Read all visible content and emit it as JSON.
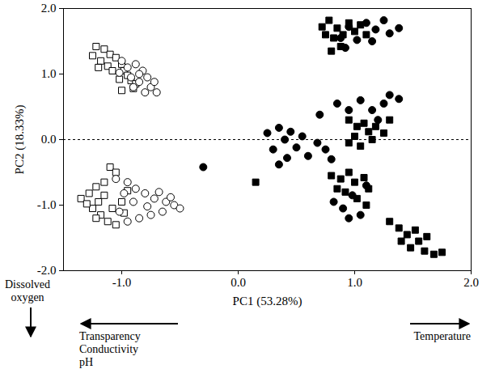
{
  "chart_data": {
    "type": "scatter",
    "x_label": "PC1 (53.28%)",
    "y_label": "PC2 (18.33%)",
    "xlim": [
      -1.5,
      2.0
    ],
    "ylim": [
      -2.0,
      2.0
    ],
    "xticks": [
      {
        "value": -1,
        "label": "-1.0"
      },
      {
        "value": 0,
        "label": "0.0"
      },
      {
        "value": 1,
        "label": "1.0"
      },
      {
        "value": 2,
        "label": "2.0"
      }
    ],
    "yticks": [
      {
        "value": -2,
        "label": "-2.0"
      },
      {
        "value": -1,
        "label": "-1.0"
      },
      {
        "value": 0,
        "label": "0.0"
      },
      {
        "value": 1,
        "label": "1.0"
      },
      {
        "value": 2,
        "label": "2.0"
      }
    ],
    "grid": false,
    "hline": {
      "y": 0,
      "line_style": "dashed"
    },
    "annotations": [
      {
        "lines": [
          "Dissolved",
          "oxygen"
        ],
        "arrow": "down"
      },
      {
        "lines": [
          "Transparency",
          "Conductivity",
          "pH"
        ],
        "arrow": "left"
      },
      {
        "lines": [
          "Temperature"
        ],
        "arrow": "right"
      }
    ],
    "series": [
      {
        "marker": "square-open",
        "color": "#000000",
        "points": [
          [
            -1.22,
            1.42
          ],
          [
            -1.15,
            1.38
          ],
          [
            -1.1,
            1.3
          ],
          [
            -1.18,
            1.2
          ],
          [
            -1.12,
            1.12
          ],
          [
            -1.05,
            1.25
          ],
          [
            -1.0,
            1.15
          ],
          [
            -0.98,
            1.05
          ],
          [
            -1.08,
            1.05
          ],
          [
            -0.95,
            0.98
          ],
          [
            -0.92,
            0.9
          ],
          [
            -0.88,
            0.85
          ],
          [
            -1.02,
            0.92
          ],
          [
            -0.9,
            0.78
          ],
          [
            -1.2,
            1.1
          ],
          [
            -1.25,
            1.28
          ],
          [
            -1.0,
            0.75
          ],
          [
            -1.35,
            -0.9
          ],
          [
            -1.28,
            -0.82
          ],
          [
            -1.22,
            -0.72
          ],
          [
            -1.15,
            -0.65
          ],
          [
            -1.1,
            -0.42
          ],
          [
            -1.2,
            -0.95
          ],
          [
            -1.25,
            -1.05
          ],
          [
            -1.18,
            -1.15
          ],
          [
            -1.12,
            -1.25
          ],
          [
            -1.05,
            -1.3
          ],
          [
            -1.08,
            -1.05
          ],
          [
            -1.0,
            -0.95
          ],
          [
            -0.98,
            -1.12
          ],
          [
            -1.15,
            -0.85
          ],
          [
            -1.3,
            -0.98
          ],
          [
            -1.22,
            -1.2
          ],
          [
            -1.05,
            -0.5
          ],
          [
            -0.95,
            -0.78
          ]
        ]
      },
      {
        "marker": "circle-open",
        "color": "#000000",
        "points": [
          [
            -1.0,
            1.2
          ],
          [
            -0.95,
            1.1
          ],
          [
            -0.88,
            1.15
          ],
          [
            -0.82,
            1.05
          ],
          [
            -0.78,
            0.95
          ],
          [
            -0.85,
            0.88
          ],
          [
            -0.92,
            0.95
          ],
          [
            -0.75,
            0.8
          ],
          [
            -0.7,
            0.72
          ],
          [
            -0.8,
            0.72
          ],
          [
            -0.9,
            0.8
          ],
          [
            -1.02,
            1.02
          ],
          [
            -0.72,
            0.88
          ],
          [
            -0.85,
            1.0
          ],
          [
            -1.05,
            -0.6
          ],
          [
            -0.95,
            -0.65
          ],
          [
            -0.88,
            -0.75
          ],
          [
            -0.8,
            -0.82
          ],
          [
            -0.72,
            -0.9
          ],
          [
            -0.62,
            -0.95
          ],
          [
            -0.55,
            -1.0
          ],
          [
            -0.5,
            -1.05
          ],
          [
            -0.65,
            -1.1
          ],
          [
            -0.75,
            -1.15
          ],
          [
            -0.85,
            -1.2
          ],
          [
            -0.95,
            -1.25
          ],
          [
            -1.02,
            -1.1
          ],
          [
            -0.9,
            -0.95
          ],
          [
            -0.78,
            -1.02
          ],
          [
            -0.68,
            -0.8
          ],
          [
            -0.58,
            -0.88
          ],
          [
            -0.98,
            -0.82
          ]
        ]
      },
      {
        "marker": "square",
        "color": "#000000",
        "points": [
          [
            0.72,
            1.72
          ],
          [
            0.78,
            1.82
          ],
          [
            0.85,
            1.7
          ],
          [
            0.9,
            1.6
          ],
          [
            0.95,
            1.78
          ],
          [
            1.0,
            1.65
          ],
          [
            1.05,
            1.75
          ],
          [
            0.82,
            1.55
          ],
          [
            0.88,
            1.42
          ],
          [
            0.8,
            1.35
          ],
          [
            1.1,
            1.6
          ],
          [
            0.75,
            1.6
          ],
          [
            0.95,
            0.3
          ],
          [
            1.02,
            0.2
          ],
          [
            1.08,
            0.25
          ],
          [
            1.12,
            0.12
          ],
          [
            1.18,
            0.2
          ],
          [
            1.25,
            0.1
          ],
          [
            1.0,
            0.05
          ],
          [
            0.95,
            -0.05
          ],
          [
            1.15,
            0.0
          ],
          [
            1.05,
            -0.1
          ],
          [
            1.3,
            0.3
          ],
          [
            0.8,
            -0.55
          ],
          [
            0.88,
            -0.6
          ],
          [
            0.95,
            -0.5
          ],
          [
            1.0,
            -0.65
          ],
          [
            1.08,
            -0.58
          ],
          [
            1.12,
            -0.75
          ],
          [
            0.92,
            -0.8
          ],
          [
            1.02,
            -0.9
          ],
          [
            1.1,
            -1.0
          ],
          [
            0.85,
            -0.75
          ],
          [
            1.3,
            -1.25
          ],
          [
            1.38,
            -1.35
          ],
          [
            1.45,
            -1.45
          ],
          [
            1.52,
            -1.38
          ],
          [
            1.55,
            -1.55
          ],
          [
            1.62,
            -1.48
          ],
          [
            1.6,
            -1.7
          ],
          [
            1.68,
            -1.75
          ],
          [
            1.75,
            -1.72
          ],
          [
            1.48,
            -1.65
          ],
          [
            1.4,
            -1.55
          ],
          [
            0.15,
            -0.65
          ]
        ]
      },
      {
        "marker": "circle",
        "color": "#000000",
        "points": [
          [
            0.88,
            1.55
          ],
          [
            0.95,
            1.72
          ],
          [
            1.02,
            1.52
          ],
          [
            1.1,
            1.78
          ],
          [
            1.18,
            1.68
          ],
          [
            1.25,
            1.82
          ],
          [
            1.3,
            1.62
          ],
          [
            1.38,
            1.7
          ],
          [
            1.15,
            1.5
          ],
          [
            0.92,
            1.4
          ],
          [
            0.25,
            0.1
          ],
          [
            0.35,
            0.18
          ],
          [
            0.4,
            0.0
          ],
          [
            0.45,
            0.12
          ],
          [
            0.3,
            -0.15
          ],
          [
            0.42,
            -0.28
          ],
          [
            0.5,
            -0.12
          ],
          [
            0.55,
            0.05
          ],
          [
            0.6,
            -0.25
          ],
          [
            0.68,
            -0.05
          ],
          [
            0.75,
            -0.15
          ],
          [
            0.7,
            0.38
          ],
          [
            0.85,
            0.55
          ],
          [
            0.95,
            0.45
          ],
          [
            1.05,
            0.6
          ],
          [
            1.15,
            0.45
          ],
          [
            1.25,
            0.55
          ],
          [
            1.3,
            0.68
          ],
          [
            1.38,
            0.62
          ],
          [
            1.2,
            0.3
          ],
          [
            0.8,
            -0.3
          ],
          [
            0.35,
            -0.38
          ],
          [
            0.82,
            -0.95
          ],
          [
            0.9,
            -1.05
          ],
          [
            0.98,
            -0.85
          ],
          [
            1.05,
            -1.15
          ],
          [
            0.95,
            -1.2
          ],
          [
            1.1,
            -0.7
          ],
          [
            -0.3,
            -0.42
          ]
        ]
      }
    ]
  }
}
